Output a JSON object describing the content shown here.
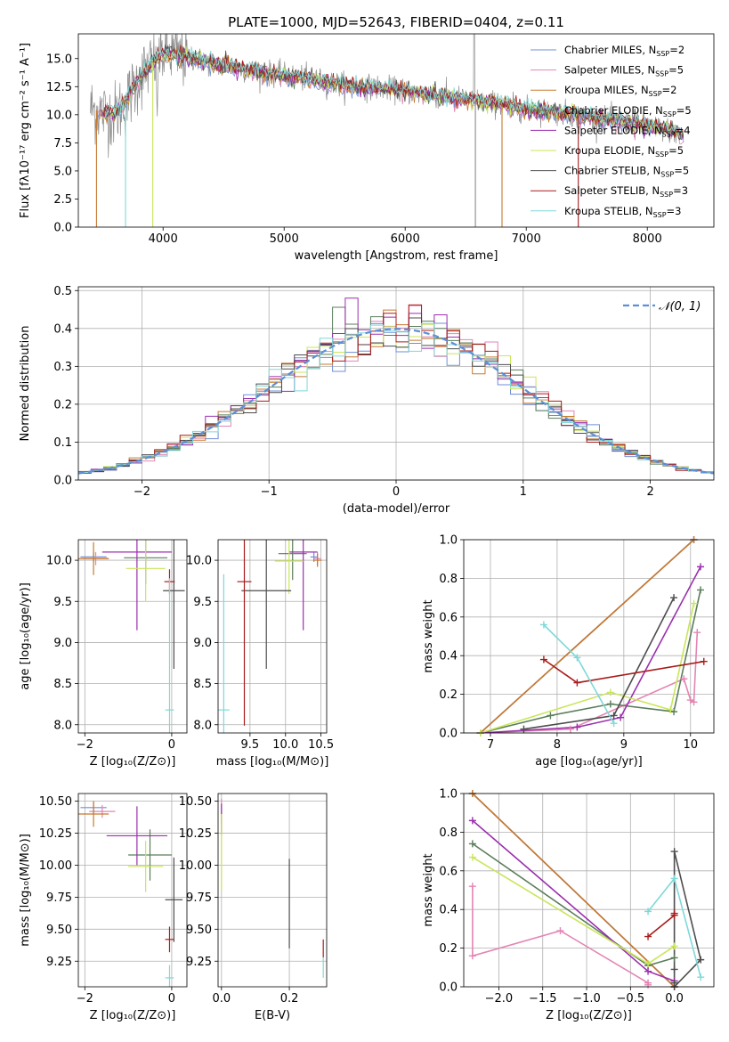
{
  "chart_data": [
    {
      "id": "spectrum",
      "type": "line",
      "title": "PLATE=1000, MJD=52643, FIBERID=0404, z=0.11",
      "xlabel": "wavelength [Angstrom, rest frame]",
      "ylabel": "Flux [fλ10⁻¹⁷ erg cm⁻² s⁻¹ A⁻¹]",
      "xlim": [
        3300,
        8550
      ],
      "ylim": [
        0,
        17.2
      ],
      "xticks": [
        4000,
        5000,
        6000,
        7000,
        8000
      ],
      "yticks": [
        0.0,
        2.5,
        5.0,
        7.5,
        10.0,
        12.5,
        15.0
      ],
      "legend_position": "upper-right",
      "grid": false,
      "data_color": "#8c8c8c",
      "continuum": {
        "x": [
          3400,
          3500,
          3600,
          3700,
          3800,
          3900,
          4000,
          4100,
          4200,
          4400,
          4600,
          4800,
          5000,
          5200,
          5400,
          5600,
          5800,
          6000,
          6200,
          6400,
          6600,
          6800,
          7000,
          7200,
          7400,
          7600,
          7800,
          8000,
          8200,
          8300
        ],
        "y": [
          10.6,
          10.2,
          10.0,
          11.2,
          13.2,
          14.5,
          15.5,
          15.3,
          15.1,
          14.6,
          14.2,
          13.8,
          13.5,
          13.2,
          12.8,
          12.5,
          12.4,
          12.1,
          11.8,
          11.5,
          11.2,
          10.9,
          10.5,
          10.3,
          10.0,
          9.6,
          9.4,
          9.0,
          8.6,
          8.2
        ]
      },
      "series": [
        {
          "name": "Chabrier MILES, N",
          "sub": "SSP",
          "suffix": "=2",
          "color": "#6f8fd8"
        },
        {
          "name": "Salpeter MILES, N",
          "sub": "SSP",
          "suffix": "=5",
          "color": "#e385b3"
        },
        {
          "name": "Kroupa MILES, N",
          "sub": "SSP",
          "suffix": "=2",
          "color": "#c8782d"
        },
        {
          "name": "Chabrier ELODIE, N",
          "sub": "SSP",
          "suffix": "=5",
          "color": "#5b7d5b"
        },
        {
          "name": "Salpeter ELODIE, N",
          "sub": "SSP",
          "suffix": "=4",
          "color": "#9b2fae"
        },
        {
          "name": "Kroupa ELODIE, N",
          "sub": "SSP",
          "suffix": "=5",
          "color": "#c9e65a"
        },
        {
          "name": "Chabrier STELIB, N",
          "sub": "SSP",
          "suffix": "=5",
          "color": "#4d4d4d"
        },
        {
          "name": "Salpeter STELIB, N",
          "sub": "SSP",
          "suffix": "=3",
          "color": "#a81c1c"
        },
        {
          "name": "Kroupa STELIB, N",
          "sub": "SSP",
          "suffix": "=3",
          "color": "#7fd8d8"
        }
      ]
    },
    {
      "id": "residuals",
      "type": "histogram",
      "xlabel": "(data-model)/error",
      "ylabel": "Normed distribution",
      "xlim": [
        -2.5,
        2.5
      ],
      "ylim": [
        0,
        0.51
      ],
      "xticks": [
        -2,
        -1,
        0,
        1,
        2
      ],
      "yticks": [
        0.0,
        0.1,
        0.2,
        0.3,
        0.4,
        0.5
      ],
      "grid": true,
      "legend_label": "𝒩(0, 1)",
      "gaussian": {
        "mean": 0,
        "sigma": 1,
        "color": "#5b8fd8"
      },
      "bins": {
        "start": -2.5,
        "width": 0.1,
        "count": 50
      }
    },
    {
      "id": "age-vs-Z",
      "type": "scatter-errorbar",
      "xlabel": "Z [log₁₀(Z/Z⊙)]",
      "ylabel": "age  [log₁₀(age/yr)]",
      "xlim": [
        -2.15,
        0.35
      ],
      "ylim": [
        7.9,
        10.25
      ],
      "xticks": [
        -2,
        0
      ],
      "yticks": [
        8.0,
        8.5,
        9.0,
        9.5,
        10.0
      ],
      "grid": true,
      "points": [
        {
          "x": -1.8,
          "y": 10.04,
          "xerr": 0.3,
          "yerr": 0.06,
          "color": "#6f8fd8"
        },
        {
          "x": -1.75,
          "y": 10.02,
          "xerr": 0.3,
          "yerr": 0.08,
          "color": "#e385b3"
        },
        {
          "x": -1.8,
          "y": 10.02,
          "xerr": 0.35,
          "yerr": 0.2,
          "color": "#c8782d"
        },
        {
          "x": -0.6,
          "y": 10.03,
          "xerr": 0.5,
          "yerr": 0.32,
          "color": "#5b7d5b"
        },
        {
          "x": -0.8,
          "y": 10.1,
          "xerr": 0.8,
          "yerr": 0.95,
          "color": "#9b2fae"
        },
        {
          "x": -0.6,
          "y": 9.9,
          "xerr": 0.45,
          "yerr": 0.4,
          "color": "#c9e65a"
        },
        {
          "x": 0.05,
          "y": 9.63,
          "xerr": 0.25,
          "yerr": 0.95,
          "color": "#4d4d4d"
        },
        {
          "x": -0.05,
          "y": 9.74,
          "xerr": 0.12,
          "yerr": 0.15,
          "color": "#a81c1c"
        },
        {
          "x": -0.05,
          "y": 8.18,
          "xerr": 0.1,
          "yerr": 1.6,
          "color": "#7fd8d8"
        }
      ]
    },
    {
      "id": "age-vs-mass",
      "type": "scatter-errorbar",
      "xlabel": "mass [log₁₀(M/M⊙)]",
      "ylabel": "",
      "xlim": [
        9.05,
        10.58
      ],
      "ylim": [
        7.9,
        10.25
      ],
      "xticks": [
        9.5,
        10.0,
        10.5
      ],
      "yticks": [
        8.0,
        8.5,
        9.0,
        9.5,
        10.0
      ],
      "grid": true,
      "points": [
        {
          "x": 10.4,
          "y": 10.04,
          "xerr": 0.05,
          "yerr": 0.06,
          "color": "#6f8fd8"
        },
        {
          "x": 10.45,
          "y": 10.02,
          "xerr": 0.05,
          "yerr": 0.08,
          "color": "#e385b3"
        },
        {
          "x": 10.45,
          "y": 10.0,
          "xerr": 0.06,
          "yerr": 0.08,
          "color": "#c8782d"
        },
        {
          "x": 10.1,
          "y": 10.08,
          "xerr": 0.2,
          "yerr": 0.32,
          "color": "#5b7d5b"
        },
        {
          "x": 10.25,
          "y": 10.1,
          "xerr": 0.2,
          "yerr": 0.95,
          "color": "#9b2fae"
        },
        {
          "x": 10.05,
          "y": 9.99,
          "xerr": 0.2,
          "yerr": 0.4,
          "color": "#c9e65a"
        },
        {
          "x": 9.73,
          "y": 9.63,
          "xerr": 0.35,
          "yerr": 0.95,
          "color": "#4d4d4d"
        },
        {
          "x": 9.42,
          "y": 9.74,
          "xerr": 0.1,
          "yerr": 1.75,
          "color": "#a81c1c"
        },
        {
          "x": 9.13,
          "y": 8.18,
          "xerr": 0.08,
          "yerr": 1.65,
          "color": "#7fd8d8"
        }
      ]
    },
    {
      "id": "mass-weight-vs-age",
      "type": "line",
      "xlabel": "age  [log₁₀(age/yr)]",
      "ylabel": "mass weight",
      "xlim": [
        6.6,
        10.35
      ],
      "ylim": [
        0.0,
        1.0
      ],
      "xticks": [
        7,
        8,
        9,
        10
      ],
      "yticks": [
        0.0,
        0.2,
        0.4,
        0.6,
        0.8,
        1.0
      ],
      "grid": true,
      "series": [
        {
          "color": "#6f8fd8",
          "x": [
            6.85,
            10.05
          ],
          "y": [
            0.0,
            1.0
          ]
        },
        {
          "color": "#e385b3",
          "x": [
            6.85,
            8.2,
            9.9,
            10.0,
            10.05,
            10.1
          ],
          "y": [
            0.0,
            0.02,
            0.28,
            0.17,
            0.16,
            0.52
          ]
        },
        {
          "color": "#c8782d",
          "x": [
            6.85,
            10.05
          ],
          "y": [
            0.0,
            1.0
          ]
        },
        {
          "color": "#5b7d5b",
          "x": [
            6.85,
            7.9,
            8.8,
            9.75,
            10.15
          ],
          "y": [
            0.0,
            0.09,
            0.15,
            0.11,
            0.74
          ]
        },
        {
          "color": "#9b2fae",
          "x": [
            6.85,
            8.3,
            8.95,
            10.15
          ],
          "y": [
            0.0,
            0.03,
            0.08,
            0.86
          ]
        },
        {
          "color": "#c9e65a",
          "x": [
            6.85,
            8.8,
            9.7,
            10.05
          ],
          "y": [
            0.0,
            0.21,
            0.12,
            0.67
          ]
        },
        {
          "color": "#4d4d4d",
          "x": [
            7.5,
            8.85,
            9.75
          ],
          "y": [
            0.02,
            0.09,
            0.7
          ]
        },
        {
          "color": "#a81c1c",
          "x": [
            7.8,
            8.3,
            10.2
          ],
          "y": [
            0.38,
            0.26,
            0.37
          ]
        },
        {
          "color": "#7fd8d8",
          "x": [
            7.8,
            8.3,
            8.85
          ],
          "y": [
            0.56,
            0.39,
            0.05
          ]
        }
      ]
    },
    {
      "id": "mass-vs-Z",
      "type": "scatter-errorbar",
      "xlabel": "Z [log₁₀(Z/Z⊙)]",
      "ylabel": "mass [log₁₀(M/M⊙)]",
      "xlim": [
        -2.15,
        0.35
      ],
      "ylim": [
        9.05,
        10.56
      ],
      "xticks": [
        -2,
        0
      ],
      "yticks": [
        9.25,
        9.5,
        9.75,
        10.0,
        10.25,
        10.5
      ],
      "grid": true,
      "points": [
        {
          "x": -1.8,
          "y": 10.45,
          "xerr": 0.3,
          "yerr": 0.05,
          "color": "#6f8fd8"
        },
        {
          "x": -1.6,
          "y": 10.42,
          "xerr": 0.3,
          "yerr": 0.05,
          "color": "#e385b3"
        },
        {
          "x": -1.8,
          "y": 10.4,
          "xerr": 0.35,
          "yerr": 0.1,
          "color": "#c8782d"
        },
        {
          "x": -0.5,
          "y": 10.08,
          "xerr": 0.5,
          "yerr": 0.2,
          "color": "#5b7d5b"
        },
        {
          "x": -0.8,
          "y": 10.23,
          "xerr": 0.7,
          "yerr": 0.23,
          "color": "#9b2fae"
        },
        {
          "x": -0.6,
          "y": 9.99,
          "xerr": 0.4,
          "yerr": 0.2,
          "color": "#c9e65a"
        },
        {
          "x": 0.05,
          "y": 9.73,
          "xerr": 0.2,
          "yerr": 0.33,
          "color": "#4d4d4d"
        },
        {
          "x": -0.05,
          "y": 9.42,
          "xerr": 0.1,
          "yerr": 0.1,
          "color": "#a81c1c"
        },
        {
          "x": -0.05,
          "y": 9.12,
          "xerr": 0.1,
          "yerr": 0.1,
          "color": "#7fd8d8"
        }
      ]
    },
    {
      "id": "mass-vs-EBV",
      "type": "scatter-errorbar",
      "xlabel": "E(B-V)",
      "ylabel": "",
      "xlim": [
        -0.01,
        0.31
      ],
      "ylim": [
        9.05,
        10.56
      ],
      "xticks": [
        0.0,
        0.2
      ],
      "yticks": [
        9.25,
        9.5,
        9.75,
        10.0,
        10.25,
        10.5
      ],
      "grid": true,
      "points": [
        {
          "x": 0.0,
          "y": 10.42,
          "xerr": 0,
          "yerr": 0.1,
          "color": "#e385b3"
        },
        {
          "x": 0.0,
          "y": 10.36,
          "xerr": 0,
          "yerr": 0.12,
          "color": "#9b2fae"
        },
        {
          "x": 0.0,
          "y": 10.1,
          "xerr": 0,
          "yerr": 0.3,
          "color": "#c9e65a"
        },
        {
          "x": 0.2,
          "y": 9.7,
          "xerr": 0,
          "yerr": 0.35,
          "color": "#4d4d4d"
        },
        {
          "x": 0.3,
          "y": 9.35,
          "xerr": 0,
          "yerr": 0.07,
          "color": "#a81c1c"
        },
        {
          "x": 0.3,
          "y": 9.2,
          "xerr": 0,
          "yerr": 0.08,
          "color": "#7fd8d8"
        }
      ]
    },
    {
      "id": "mass-weight-vs-Z",
      "type": "line",
      "xlabel": "Z [log₁₀(Z/Z⊙)]",
      "ylabel": "mass weight",
      "xlim": [
        -2.4,
        0.45
      ],
      "ylim": [
        0.0,
        1.0
      ],
      "xticks": [
        -2.0,
        -1.5,
        -1.0,
        -0.5,
        0.0
      ],
      "yticks": [
        0.0,
        0.2,
        0.4,
        0.6,
        0.8,
        1.0
      ],
      "grid": true,
      "series": [
        {
          "color": "#6f8fd8",
          "x": [
            -2.3,
            0.0
          ],
          "y": [
            1.0,
            0.0
          ]
        },
        {
          "color": "#e385b3",
          "x": [
            -2.3,
            -2.3,
            -1.3,
            -0.3,
            -0.3
          ],
          "y": [
            0.52,
            0.16,
            0.29,
            0.02,
            0.01
          ]
        },
        {
          "color": "#c8782d",
          "x": [
            -2.3,
            0.0
          ],
          "y": [
            1.0,
            0.0
          ]
        },
        {
          "color": "#5b7d5b",
          "x": [
            -2.3,
            -0.3,
            0.0
          ],
          "y": [
            0.74,
            0.11,
            0.15
          ]
        },
        {
          "color": "#9b2fae",
          "x": [
            -2.3,
            -0.3,
            0.0
          ],
          "y": [
            0.86,
            0.08,
            0.03
          ]
        },
        {
          "color": "#c9e65a",
          "x": [
            -2.3,
            -0.3,
            0.0
          ],
          "y": [
            0.67,
            0.12,
            0.21
          ]
        },
        {
          "color": "#4d4d4d",
          "x": [
            0.0,
            0.0,
            0.3,
            0.0,
            0.0
          ],
          "y": [
            0.02,
            0.7,
            0.14,
            0.0,
            0.09
          ]
        },
        {
          "color": "#a81c1c",
          "x": [
            -0.3,
            0.0,
            0.0
          ],
          "y": [
            0.26,
            0.37,
            0.38
          ]
        },
        {
          "color": "#7fd8d8",
          "x": [
            -0.3,
            0.0,
            0.3
          ],
          "y": [
            0.39,
            0.56,
            0.05
          ]
        }
      ]
    }
  ]
}
